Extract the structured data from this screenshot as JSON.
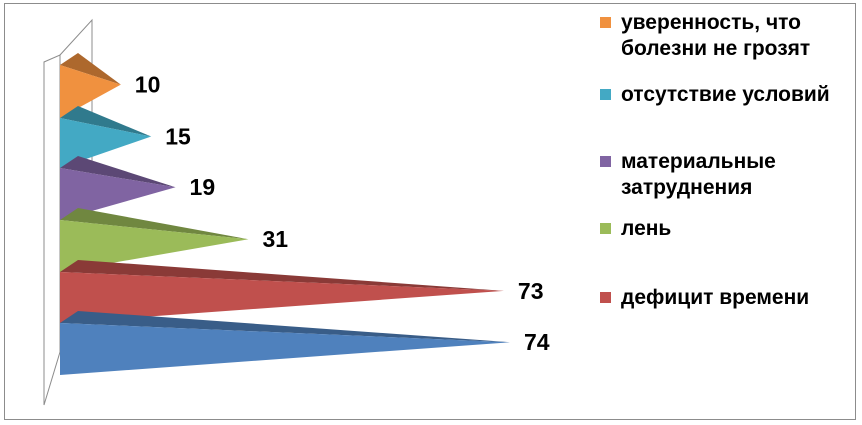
{
  "chart_data": {
    "type": "bar",
    "orientation": "horizontal",
    "style": "3d-cone",
    "categories": [
      "уверенность, что болезни не грозят",
      "отсутствие условий",
      "материальные затруднения",
      "лень",
      "дефицит времени",
      ""
    ],
    "values": [
      10,
      15,
      19,
      31,
      73,
      74
    ],
    "colors": [
      "#F0913F",
      "#43A9C4",
      "#8064A2",
      "#9BBB59",
      "#C0504D",
      "#4F81BD"
    ],
    "title": "",
    "xlabel": "",
    "ylabel": "",
    "xlim": [
      0,
      74
    ],
    "grid": false,
    "legend_position": "right"
  },
  "legend": {
    "items": [
      {
        "label": "уверенность, что болезни не грозят",
        "color": "#F0913F"
      },
      {
        "label": "отсутствие условий",
        "color": "#43A9C4"
      },
      {
        "label": "материальные затруднения",
        "color": "#8064A2"
      },
      {
        "label": "лень",
        "color": "#9BBB59"
      },
      {
        "label": "дефицит времени",
        "color": "#C0504D"
      }
    ]
  }
}
